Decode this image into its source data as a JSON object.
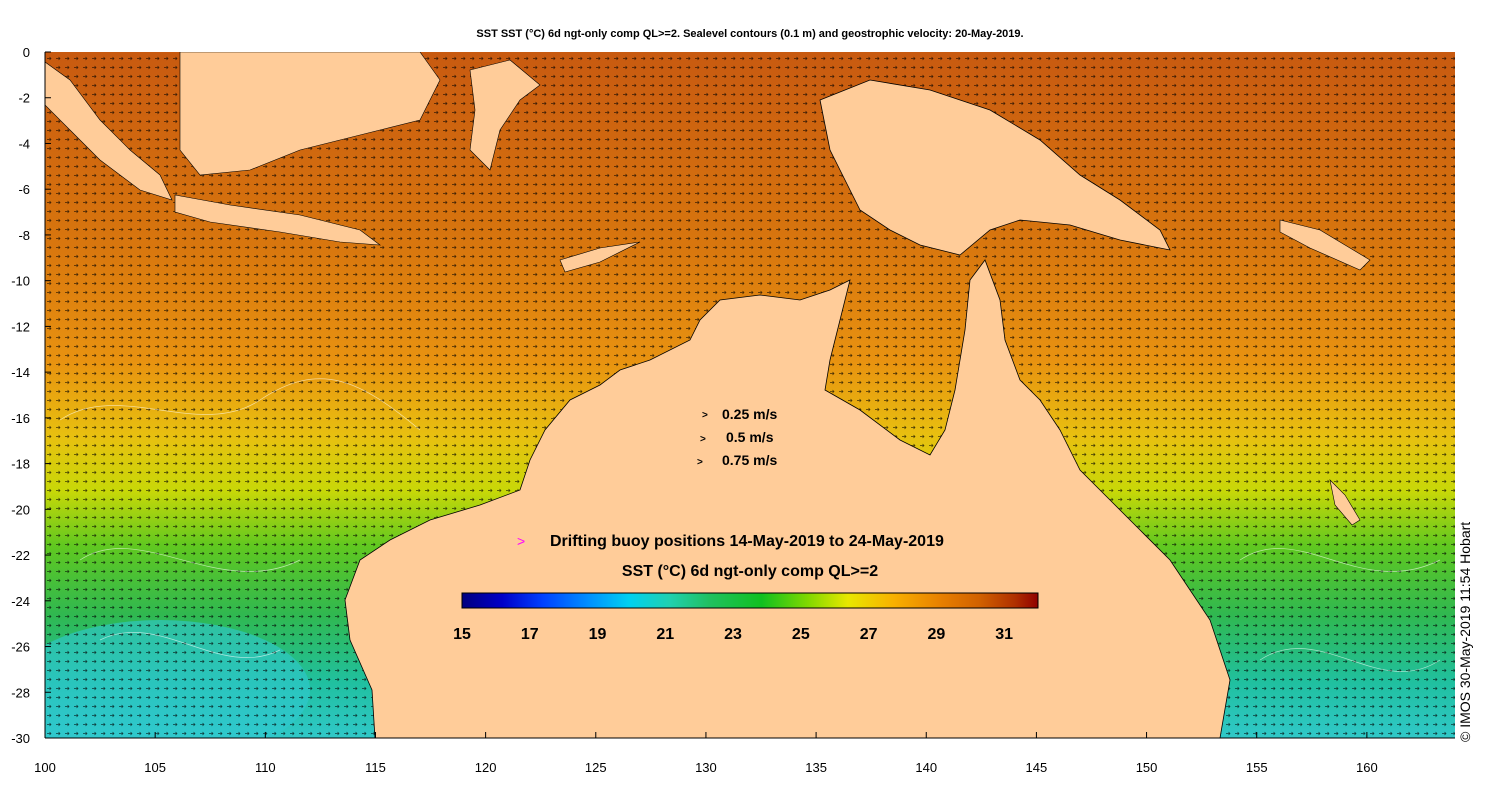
{
  "title": "SST SST (°C) 6d ngt-only comp QL>=2. Sealevel contours (0.1 m) and geostrophic velocity: 20-May-2019.",
  "credit": "© IMOS 30-May-2019 11:54 Hobart",
  "map": {
    "lon_range": [
      100,
      164
    ],
    "lat_range": [
      -30,
      0
    ],
    "x_ticks": [
      "100",
      "105",
      "110",
      "115",
      "120",
      "125",
      "130",
      "135",
      "140",
      "145",
      "150",
      "155",
      "160"
    ],
    "y_ticks": [
      "0",
      "-2",
      "-4",
      "-6",
      "-8",
      "-10",
      "-12",
      "-14",
      "-16",
      "-18",
      "-20",
      "-22",
      "-24",
      "-26",
      "-28",
      "-30"
    ]
  },
  "velocity_legend": [
    {
      "label": "0.25 m/s"
    },
    {
      "label": "0.5 m/s"
    },
    {
      "label": "0.75 m/s"
    }
  ],
  "buoy_legend": {
    "label": "Drifting buoy positions 14-May-2019 to 24-May-2019",
    "color": "#ff00ff"
  },
  "colorbar": {
    "title": "SST (°C) 6d ngt-only comp QL>=2",
    "range": [
      15,
      32
    ],
    "tick_labels": [
      "15",
      "17",
      "19",
      "21",
      "23",
      "25",
      "27",
      "29",
      "31"
    ],
    "colors": [
      "#00007f",
      "#0000c8",
      "#0040ff",
      "#0090ff",
      "#00d0f0",
      "#20d0b0",
      "#20c060",
      "#10c020",
      "#80d800",
      "#e8e800",
      "#f8b000",
      "#e88000",
      "#d06000",
      "#b03000",
      "#900000"
    ]
  },
  "colors": {
    "land": "#ffcc99",
    "ocean_warm": "#d9760e",
    "coast": "#000000"
  }
}
